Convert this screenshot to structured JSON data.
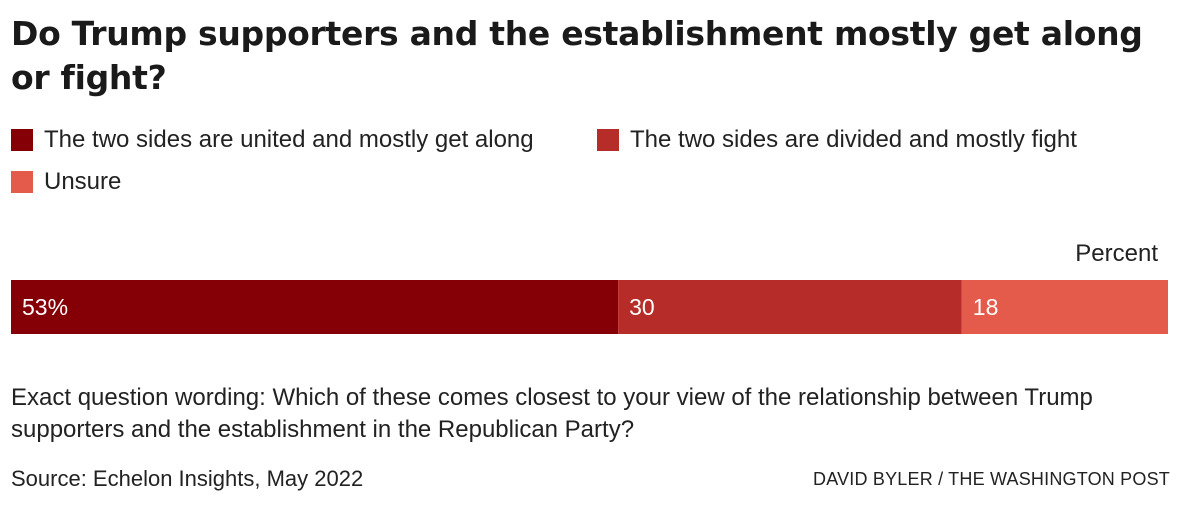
{
  "title": "Do Trump supporters and the establishment mostly get along or fight?",
  "unit_label": "Percent",
  "note": "Exact question wording: Which of these comes closest to your view of the relationship between Trump supporters and the establishment in the Republican Party?",
  "source": "Source: Echelon Insights, May 2022",
  "credit": "DAVID BYLER / THE WASHINGTON POST",
  "chart_data": {
    "type": "bar",
    "orientation": "horizontal-stacked",
    "legend_placement": "top-left",
    "grid": false,
    "xlim": [
      0,
      101
    ],
    "series": [
      {
        "name": "The two sides are united and mostly get along",
        "value": 53,
        "label": "53%",
        "color": "#850006"
      },
      {
        "name": "The two sides are divided and mostly fight",
        "value": 30,
        "label": "30",
        "color": "#b52c28"
      },
      {
        "name": "Unsure",
        "value": 18,
        "label": "18",
        "color": "#e55b4b"
      }
    ]
  }
}
